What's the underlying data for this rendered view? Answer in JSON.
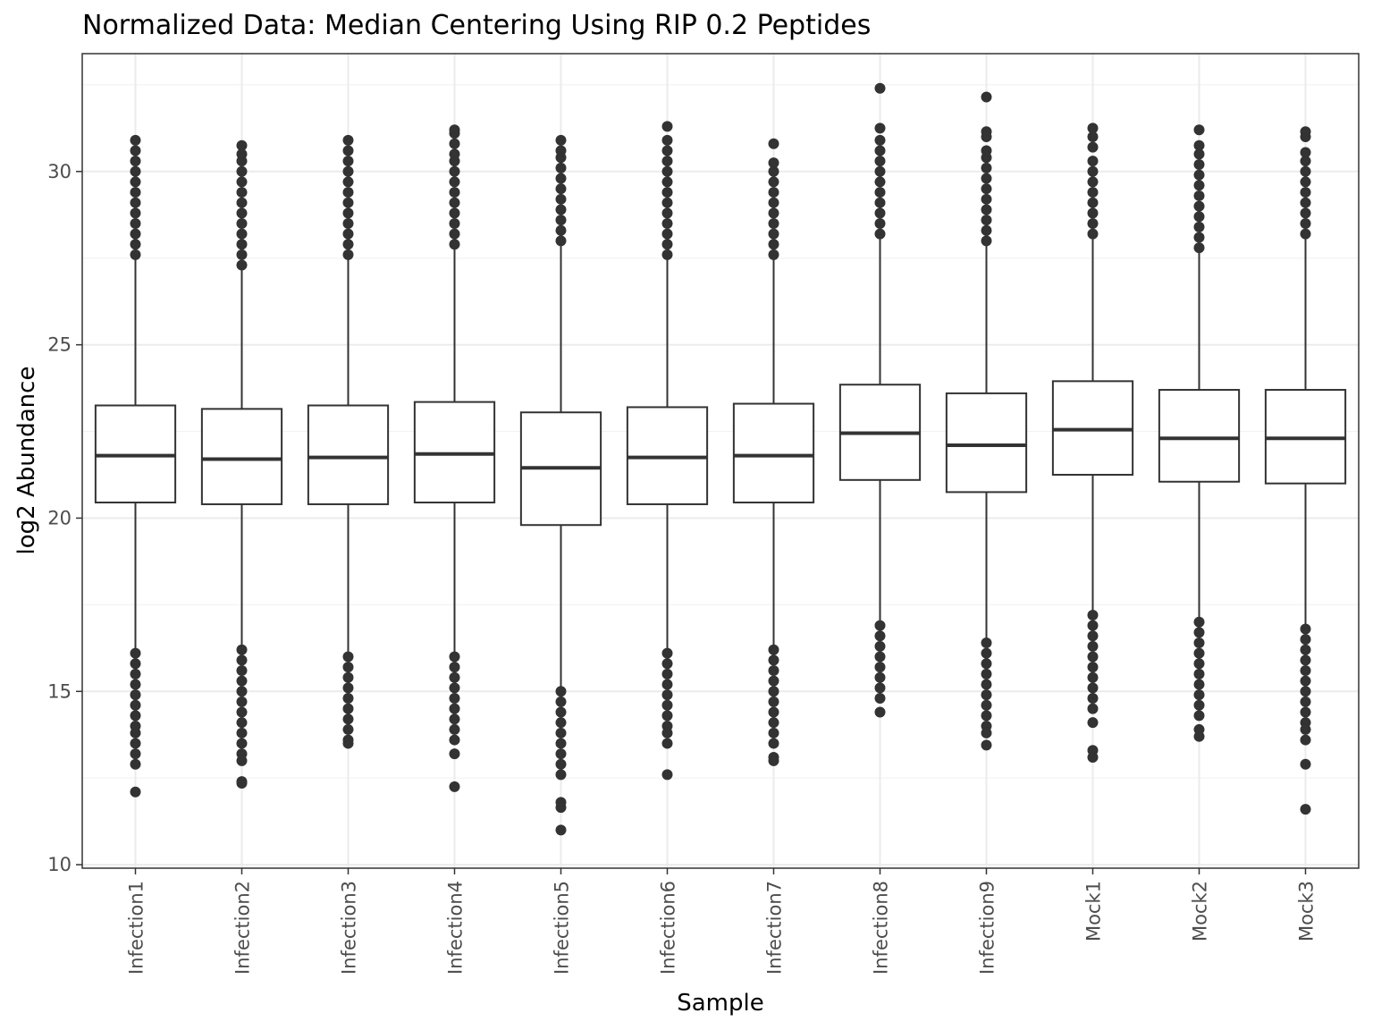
{
  "chart_data": {
    "type": "boxplot",
    "title": "Normalized Data: Median Centering Using RIP 0.2 Peptides",
    "xlabel": "Sample",
    "ylabel": "log2 Abundance",
    "ylim": [
      9.9,
      33.4
    ],
    "yticks": [
      10,
      15,
      20,
      25,
      30
    ],
    "grid": true,
    "categories": [
      "Infection1",
      "Infection2",
      "Infection3",
      "Infection4",
      "Infection5",
      "Infection6",
      "Infection7",
      "Infection8",
      "Infection9",
      "Mock1",
      "Mock2",
      "Mock3"
    ],
    "boxes": [
      {
        "category": "Infection1",
        "whisker_low": 16.2,
        "q1": 20.45,
        "median": 21.8,
        "q3": 23.25,
        "whisker_high": 27.5,
        "outliers_low": [
          16.1,
          15.8,
          15.5,
          15.2,
          14.9,
          14.6,
          14.3,
          14.0,
          13.8,
          13.5,
          13.2,
          12.9,
          12.1
        ],
        "outliers_high": [
          27.6,
          27.9,
          28.2,
          28.5,
          28.8,
          29.1,
          29.4,
          29.7,
          30.0,
          30.3,
          30.6,
          30.9
        ]
      },
      {
        "category": "Infection2",
        "whisker_low": 16.3,
        "q1": 20.4,
        "median": 21.7,
        "q3": 23.15,
        "whisker_high": 27.2,
        "outliers_low": [
          16.2,
          15.9,
          15.6,
          15.3,
          15.0,
          14.7,
          14.4,
          14.1,
          13.8,
          13.5,
          13.2,
          13.0,
          12.4,
          12.35
        ],
        "outliers_high": [
          27.3,
          27.6,
          27.9,
          28.2,
          28.5,
          28.8,
          29.1,
          29.4,
          29.7,
          30.0,
          30.3,
          30.5,
          30.75
        ]
      },
      {
        "category": "Infection3",
        "whisker_low": 16.1,
        "q1": 20.4,
        "median": 21.75,
        "q3": 23.25,
        "whisker_high": 27.5,
        "outliers_low": [
          16.0,
          15.7,
          15.4,
          15.1,
          14.8,
          14.5,
          14.2,
          13.9,
          13.6,
          13.5
        ],
        "outliers_high": [
          27.6,
          27.9,
          28.2,
          28.5,
          28.8,
          29.1,
          29.4,
          29.7,
          30.0,
          30.3,
          30.6,
          30.9
        ]
      },
      {
        "category": "Infection4",
        "whisker_low": 16.0,
        "q1": 20.45,
        "median": 21.85,
        "q3": 23.35,
        "whisker_high": 27.8,
        "outliers_low": [
          16.0,
          15.7,
          15.4,
          15.1,
          14.8,
          14.5,
          14.2,
          13.9,
          13.6,
          13.2,
          12.25
        ],
        "outliers_high": [
          27.9,
          28.2,
          28.5,
          28.8,
          29.1,
          29.4,
          29.7,
          30.0,
          30.3,
          30.5,
          30.8,
          31.1,
          31.2
        ]
      },
      {
        "category": "Infection5",
        "whisker_low": 15.0,
        "q1": 19.8,
        "median": 21.45,
        "q3": 23.05,
        "whisker_high": 27.9,
        "outliers_low": [
          15.0,
          14.7,
          14.4,
          14.1,
          13.8,
          13.5,
          13.2,
          12.9,
          12.6,
          11.8,
          11.65,
          11.0
        ],
        "outliers_high": [
          28.0,
          28.3,
          28.6,
          28.9,
          29.2,
          29.5,
          29.8,
          30.1,
          30.4,
          30.6,
          30.9
        ]
      },
      {
        "category": "Infection6",
        "whisker_low": 16.1,
        "q1": 20.4,
        "median": 21.75,
        "q3": 23.2,
        "whisker_high": 27.5,
        "outliers_low": [
          16.1,
          15.8,
          15.5,
          15.2,
          14.9,
          14.6,
          14.3,
          14.0,
          13.8,
          13.5,
          12.6
        ],
        "outliers_high": [
          27.6,
          27.9,
          28.2,
          28.5,
          28.8,
          29.1,
          29.4,
          29.7,
          30.0,
          30.3,
          30.6,
          30.9,
          31.3
        ]
      },
      {
        "category": "Infection7",
        "whisker_low": 16.2,
        "q1": 20.45,
        "median": 21.8,
        "q3": 23.3,
        "whisker_high": 27.5,
        "outliers_low": [
          16.2,
          15.9,
          15.6,
          15.3,
          15.0,
          14.7,
          14.4,
          14.1,
          13.8,
          13.5,
          13.1,
          13.0
        ],
        "outliers_high": [
          27.6,
          27.9,
          28.2,
          28.5,
          28.8,
          29.1,
          29.4,
          29.7,
          30.0,
          30.25,
          30.8
        ]
      },
      {
        "category": "Infection8",
        "whisker_low": 16.9,
        "q1": 21.1,
        "median": 22.45,
        "q3": 23.85,
        "whisker_high": 28.1,
        "outliers_low": [
          16.9,
          16.6,
          16.3,
          16.0,
          15.7,
          15.4,
          15.1,
          14.8,
          14.4
        ],
        "outliers_high": [
          28.2,
          28.5,
          28.8,
          29.1,
          29.4,
          29.7,
          30.0,
          30.3,
          30.6,
          30.9,
          31.25,
          32.4
        ]
      },
      {
        "category": "Infection9",
        "whisker_low": 16.4,
        "q1": 20.75,
        "median": 22.1,
        "q3": 23.6,
        "whisker_high": 27.9,
        "outliers_low": [
          16.4,
          16.1,
          15.8,
          15.5,
          15.2,
          14.9,
          14.6,
          14.3,
          14.0,
          13.8,
          13.45
        ],
        "outliers_high": [
          28.0,
          28.3,
          28.6,
          28.9,
          29.2,
          29.5,
          29.8,
          30.1,
          30.4,
          30.6,
          31.0,
          31.15,
          32.15
        ]
      },
      {
        "category": "Mock1",
        "whisker_low": 17.2,
        "q1": 21.25,
        "median": 22.55,
        "q3": 23.95,
        "whisker_high": 28.1,
        "outliers_low": [
          17.2,
          16.9,
          16.6,
          16.3,
          16.0,
          15.7,
          15.4,
          15.1,
          14.8,
          14.5,
          14.1,
          13.3,
          13.1
        ],
        "outliers_high": [
          28.2,
          28.5,
          28.8,
          29.1,
          29.4,
          29.7,
          30.0,
          30.3,
          30.7,
          31.0,
          31.25
        ]
      },
      {
        "category": "Mock2",
        "whisker_low": 17.0,
        "q1": 21.05,
        "median": 22.3,
        "q3": 23.7,
        "whisker_high": 27.7,
        "outliers_low": [
          17.0,
          16.7,
          16.4,
          16.1,
          15.8,
          15.5,
          15.2,
          14.9,
          14.6,
          14.3,
          13.9,
          13.7
        ],
        "outliers_high": [
          27.8,
          28.1,
          28.4,
          28.7,
          29.0,
          29.3,
          29.6,
          29.9,
          30.2,
          30.5,
          30.75,
          31.2
        ]
      },
      {
        "category": "Mock3",
        "whisker_low": 16.8,
        "q1": 21.0,
        "median": 22.3,
        "q3": 23.7,
        "whisker_high": 28.1,
        "outliers_low": [
          16.8,
          16.5,
          16.2,
          15.9,
          15.6,
          15.3,
          15.0,
          14.7,
          14.4,
          14.1,
          13.9,
          13.6,
          12.9,
          11.6
        ],
        "outliers_high": [
          28.2,
          28.5,
          28.8,
          29.1,
          29.4,
          29.7,
          30.0,
          30.3,
          30.55,
          31.0,
          31.15
        ]
      }
    ],
    "colors": {
      "box_line": "#333333",
      "outlier": "#333333",
      "grid_major": "#ebebeb",
      "grid_minor": "#f3f3f3",
      "panel_border": "#333333",
      "tick_text": "#4d4d4d"
    }
  }
}
